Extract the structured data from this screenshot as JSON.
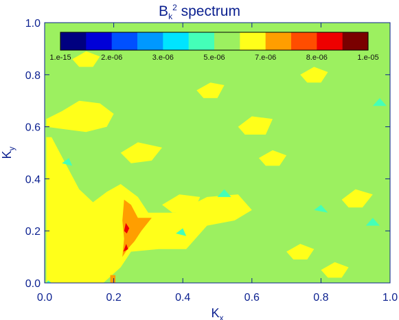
{
  "chart_data": {
    "type": "heatmap",
    "title": {
      "main": "B",
      "sub": "k",
      "sup": "2",
      "suffix": " spectrum"
    },
    "xlabel": {
      "main": "K",
      "sub": "x"
    },
    "ylabel": {
      "main": "K",
      "sub": "y"
    },
    "xlim": [
      0,
      1
    ],
    "ylim": [
      0,
      1
    ],
    "x_ticks": [
      "0.0",
      "0.2",
      "0.4",
      "0.6",
      "0.8",
      "1.0"
    ],
    "y_ticks": [
      "0.0",
      "0.2",
      "0.4",
      "0.6",
      "0.8",
      "1.0"
    ],
    "colorbar": {
      "levels": [
        1e-15,
        1e-06,
        2e-06,
        2.5e-06,
        3e-06,
        4e-06,
        5e-06,
        6e-06,
        7e-06,
        7.5e-06,
        8e-06,
        9e-06,
        1e-05
      ],
      "colors": [
        "#000080",
        "#0000d8",
        "#0050ff",
        "#0098ff",
        "#00e4ff",
        "#44ffb8",
        "#9cf060",
        "#ffff1a",
        "#ff9e00",
        "#ff4d00",
        "#ee0000",
        "#7a0000"
      ],
      "tick_labels": [
        "1.e-15",
        "2.e-06",
        "3.e-06",
        "5.e-06",
        "7.e-06",
        "8.e-06",
        "1.e-05"
      ],
      "tick_positions": [
        0,
        2,
        4,
        6,
        8,
        10,
        12
      ]
    },
    "background_level_color": "#9cf060",
    "regions": [
      {
        "color": "#ffff1a",
        "points": [
          [
            0.005,
            0.0
          ],
          [
            0.17,
            0.0
          ],
          [
            0.22,
            0.06
          ],
          [
            0.25,
            0.12
          ],
          [
            0.33,
            0.13
          ],
          [
            0.41,
            0.13
          ],
          [
            0.47,
            0.22
          ],
          [
            0.55,
            0.24
          ],
          [
            0.6,
            0.28
          ],
          [
            0.56,
            0.34
          ],
          [
            0.47,
            0.33
          ],
          [
            0.38,
            0.27
          ],
          [
            0.3,
            0.27
          ],
          [
            0.27,
            0.33
          ],
          [
            0.22,
            0.38
          ],
          [
            0.18,
            0.35
          ],
          [
            0.14,
            0.31
          ],
          [
            0.1,
            0.36
          ],
          [
            0.06,
            0.46
          ],
          [
            0.02,
            0.56
          ],
          [
            0.005,
            0.56
          ]
        ]
      },
      {
        "color": "#ffff1a",
        "points": [
          [
            0.005,
            0.63
          ],
          [
            0.05,
            0.66
          ],
          [
            0.1,
            0.7
          ],
          [
            0.16,
            0.69
          ],
          [
            0.2,
            0.65
          ],
          [
            0.18,
            0.6
          ],
          [
            0.12,
            0.58
          ],
          [
            0.06,
            0.59
          ],
          [
            0.005,
            0.6
          ]
        ]
      },
      {
        "color": "#ffff1a",
        "points": [
          [
            0.22,
            0.5
          ],
          [
            0.27,
            0.54
          ],
          [
            0.34,
            0.52
          ],
          [
            0.31,
            0.47
          ],
          [
            0.25,
            0.46
          ]
        ]
      },
      {
        "color": "#ffff1a",
        "points": [
          [
            0.34,
            0.3
          ],
          [
            0.39,
            0.34
          ],
          [
            0.45,
            0.33
          ],
          [
            0.43,
            0.27
          ],
          [
            0.37,
            0.27
          ]
        ]
      },
      {
        "color": "#ffff1a",
        "points": [
          [
            0.56,
            0.6
          ],
          [
            0.6,
            0.64
          ],
          [
            0.66,
            0.63
          ],
          [
            0.64,
            0.57
          ],
          [
            0.58,
            0.57
          ]
        ]
      },
      {
        "color": "#ffff1a",
        "points": [
          [
            0.62,
            0.48
          ],
          [
            0.66,
            0.51
          ],
          [
            0.7,
            0.49
          ],
          [
            0.68,
            0.45
          ],
          [
            0.64,
            0.45
          ]
        ]
      },
      {
        "color": "#ffff1a",
        "points": [
          [
            0.7,
            0.12
          ],
          [
            0.74,
            0.15
          ],
          [
            0.78,
            0.13
          ],
          [
            0.76,
            0.09
          ],
          [
            0.72,
            0.09
          ]
        ]
      },
      {
        "color": "#ffff1a",
        "points": [
          [
            0.8,
            0.05
          ],
          [
            0.84,
            0.08
          ],
          [
            0.88,
            0.06
          ],
          [
            0.86,
            0.02
          ],
          [
            0.82,
            0.02
          ]
        ]
      },
      {
        "color": "#ffff1a",
        "points": [
          [
            0.86,
            0.32
          ],
          [
            0.9,
            0.36
          ],
          [
            0.95,
            0.34
          ],
          [
            0.92,
            0.29
          ],
          [
            0.88,
            0.29
          ]
        ]
      },
      {
        "color": "#ffff1a",
        "points": [
          [
            0.44,
            0.74
          ],
          [
            0.48,
            0.77
          ],
          [
            0.52,
            0.76
          ],
          [
            0.5,
            0.71
          ],
          [
            0.46,
            0.71
          ]
        ]
      },
      {
        "color": "#ffff1a",
        "points": [
          [
            0.74,
            0.8
          ],
          [
            0.78,
            0.83
          ],
          [
            0.82,
            0.81
          ],
          [
            0.8,
            0.77
          ],
          [
            0.76,
            0.77
          ]
        ]
      },
      {
        "color": "#ffff1a",
        "points": [
          [
            0.08,
            0.86
          ],
          [
            0.12,
            0.89
          ],
          [
            0.16,
            0.87
          ],
          [
            0.14,
            0.83
          ],
          [
            0.1,
            0.83
          ]
        ]
      },
      {
        "color": "#ff9e00",
        "points": [
          [
            0.225,
            0.1
          ],
          [
            0.23,
            0.17
          ],
          [
            0.225,
            0.24
          ],
          [
            0.23,
            0.32
          ],
          [
            0.25,
            0.3
          ],
          [
            0.27,
            0.25
          ],
          [
            0.31,
            0.25
          ],
          [
            0.28,
            0.2
          ],
          [
            0.26,
            0.16
          ],
          [
            0.24,
            0.13
          ]
        ]
      },
      {
        "color": "#ff9e00",
        "points": [
          [
            0.19,
            0.0
          ],
          [
            0.205,
            0.0
          ],
          [
            0.205,
            0.03
          ],
          [
            0.19,
            0.03
          ]
        ]
      },
      {
        "color": "#ee0000",
        "points": [
          [
            0.23,
            0.2
          ],
          [
            0.235,
            0.23
          ],
          [
            0.245,
            0.21
          ],
          [
            0.238,
            0.19
          ]
        ]
      },
      {
        "color": "#ee0000",
        "points": [
          [
            0.228,
            0.12
          ],
          [
            0.236,
            0.15
          ],
          [
            0.242,
            0.13
          ]
        ]
      },
      {
        "color": "#44ffb8",
        "points": [
          [
            0.05,
            0.46
          ],
          [
            0.07,
            0.48
          ],
          [
            0.08,
            0.45
          ]
        ]
      },
      {
        "color": "#44ffb8",
        "points": [
          [
            0.5,
            0.33
          ],
          [
            0.52,
            0.36
          ],
          [
            0.54,
            0.33
          ]
        ]
      },
      {
        "color": "#44ffb8",
        "points": [
          [
            0.93,
            0.22
          ],
          [
            0.95,
            0.25
          ],
          [
            0.97,
            0.22
          ]
        ]
      },
      {
        "color": "#44ffb8",
        "points": [
          [
            0.78,
            0.28
          ],
          [
            0.8,
            0.3
          ],
          [
            0.82,
            0.27
          ]
        ]
      },
      {
        "color": "#44ffb8",
        "points": [
          [
            0.95,
            0.68
          ],
          [
            0.97,
            0.71
          ],
          [
            0.99,
            0.68
          ]
        ]
      },
      {
        "color": "#44ffb8",
        "points": [
          [
            0.38,
            0.19
          ],
          [
            0.4,
            0.21
          ],
          [
            0.41,
            0.18
          ]
        ]
      },
      {
        "color": "#44ffb8",
        "points": [
          [
            0.005,
            0.0
          ],
          [
            0.01,
            0.01
          ],
          [
            0.02,
            0.0
          ]
        ]
      }
    ]
  }
}
